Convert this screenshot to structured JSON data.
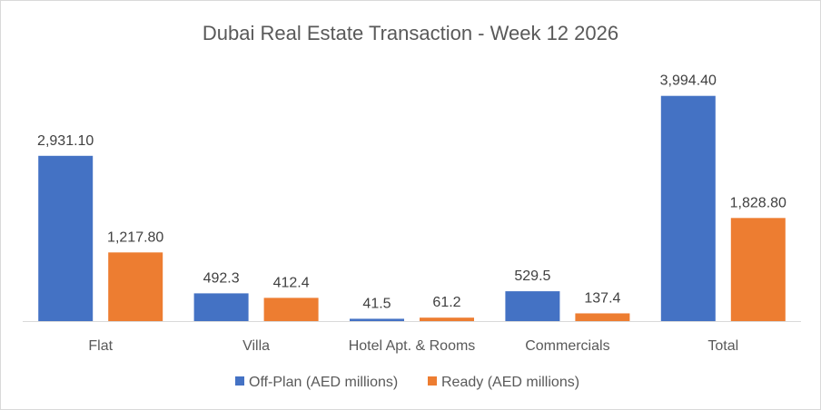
{
  "chart_data": {
    "type": "bar",
    "title": "Dubai Real Estate Transaction - Week 12 2026",
    "categories": [
      "Flat",
      "Villa",
      "Hotel Apt. & Rooms",
      "Commercials",
      "Total"
    ],
    "series": [
      {
        "name": "Off-Plan (AED millions)",
        "color": "#4472c4",
        "values": [
          2931.1,
          492.3,
          41.5,
          529.5,
          3994.4
        ],
        "labels": [
          "2,931.10",
          "492.3",
          "41.5",
          "529.5",
          "3,994.40"
        ]
      },
      {
        "name": "Ready (AED millions)",
        "color": "#ed7d31",
        "values": [
          1217.8,
          412.4,
          61.2,
          137.4,
          1828.8
        ],
        "labels": [
          "1,217.80",
          "412.4",
          "61.2",
          "137.4",
          "1,828.80"
        ]
      }
    ],
    "xlabel": "",
    "ylabel": "",
    "ylim": [
      0,
      4000
    ],
    "grid": false,
    "y_axis_visible": false,
    "legend": "bottom"
  }
}
